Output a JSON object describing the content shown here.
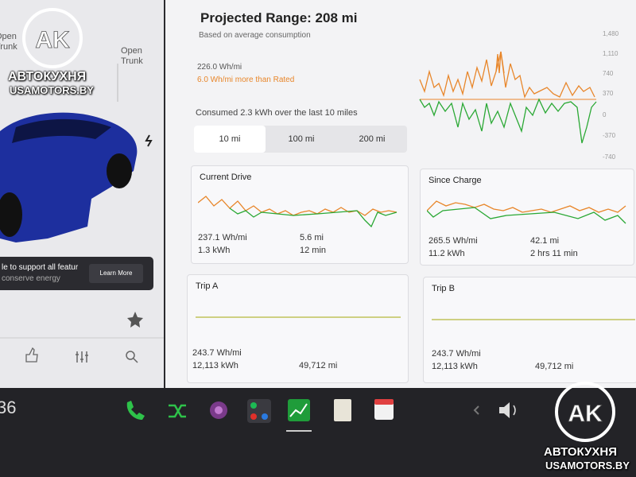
{
  "left_panel": {
    "frunk_label": "Open Trunk",
    "trunk_label": "Open Trunk",
    "notification": {
      "text": "le to support all featur",
      "subtext": "conserve energy",
      "button": "Learn More"
    }
  },
  "energy": {
    "title": "Projected Range: 208 mi",
    "subtitle": "Based on average consumption",
    "average": "226.0 Wh/mi",
    "rated_delta": "6.0 Wh/mi more than Rated",
    "consumed": "Consumed 2.3 kWh over the last 10 miles",
    "tabs": [
      "10 mi",
      "100 mi",
      "200 mi"
    ],
    "axis_labels": [
      "1,480",
      "1,110",
      "740",
      "370",
      "0",
      "-370",
      "-740"
    ]
  },
  "cards": [
    {
      "title": "Current Drive",
      "efficiency": "237.1 Wh/mi",
      "energy": "1.3 kWh",
      "distance": "5.6 mi",
      "time": "12 min"
    },
    {
      "title": "Since Charge",
      "efficiency": "265.5 Wh/mi",
      "energy": "11.2 kWh",
      "distance": "42.1 mi",
      "time": "2 hrs 11 min"
    },
    {
      "title": "Trip A",
      "efficiency": "243.7 Wh/mi",
      "energy": "12,113 kWh",
      "distance": "49,712 mi"
    },
    {
      "title": "Trip B",
      "efficiency": "243.7 Wh/mi",
      "energy": "12,113 kWh",
      "distance": "49,712 mi"
    }
  ],
  "taskbar": {
    "speed": "36"
  },
  "watermark": {
    "logo": "AK",
    "brand": "АВТОКУХНЯ",
    "site": "USAMOTORS.BY"
  }
}
